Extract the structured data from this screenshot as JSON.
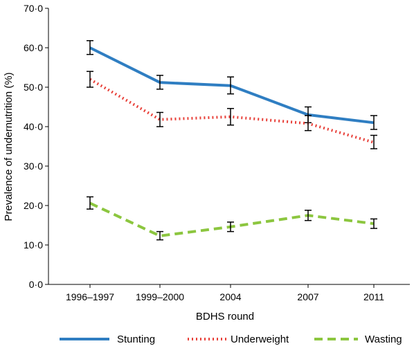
{
  "chart_data": {
    "type": "line",
    "categories": [
      "1996–1997",
      "1999–2000",
      "2004",
      "2007",
      "2011"
    ],
    "xlabel": "BDHS round",
    "ylabel": "Prevalence of undernutrition (%)",
    "ylim": [
      0,
      70
    ],
    "yticks": [
      "0·0",
      "10·0",
      "20·0",
      "30·0",
      "40·0",
      "50·0",
      "60·0",
      "70·0"
    ],
    "grid": false,
    "legend_position": "bottom",
    "series": [
      {
        "name": "Stunting",
        "color": "#2f7ec2",
        "style": "solid",
        "values": [
          60.0,
          51.2,
          50.4,
          43.0,
          41.0
        ],
        "error_low": [
          58.3,
          49.5,
          48.3,
          41.0,
          39.3
        ],
        "error_high": [
          61.8,
          53.0,
          52.6,
          45.0,
          42.8
        ]
      },
      {
        "name": "Underweight",
        "color": "#e8413a",
        "style": "dotted",
        "values": [
          52.0,
          41.8,
          42.5,
          40.8,
          36.0
        ],
        "error_low": [
          50.0,
          40.0,
          40.4,
          39.0,
          34.4
        ],
        "error_high": [
          54.0,
          43.6,
          44.6,
          42.8,
          37.8
        ]
      },
      {
        "name": "Wasting",
        "color": "#8cc63f",
        "style": "dashed",
        "values": [
          20.6,
          12.3,
          14.6,
          17.5,
          15.4
        ],
        "error_low": [
          19.1,
          11.3,
          13.4,
          16.2,
          14.2
        ],
        "error_high": [
          22.2,
          13.4,
          15.8,
          18.8,
          16.6
        ]
      }
    ]
  }
}
